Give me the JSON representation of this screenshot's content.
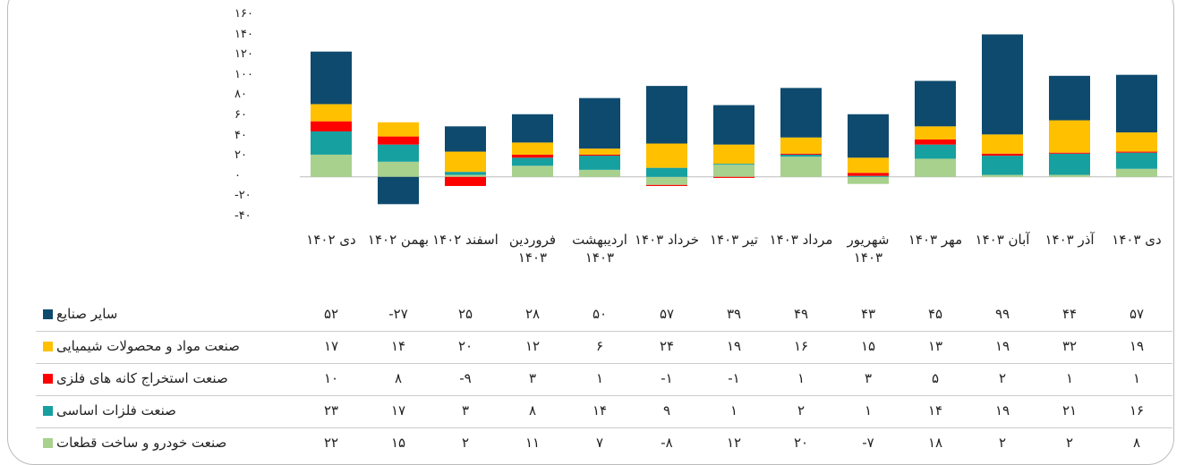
{
  "chart_data": {
    "type": "bar",
    "stacked": true,
    "categories": [
      "دی ۱۴۰۲",
      "بهمن ۱۴۰۲",
      "اسفند ۱۴۰۲",
      "فروردین ۱۴۰۳",
      "اردیبهشت ۱۴۰۳",
      "خرداد ۱۴۰۳",
      "تیر ۱۴۰۳",
      "مرداد ۱۴۰۳",
      "شهریور ۱۴۰۳",
      "مهر ۱۴۰۳",
      "آبان ۱۴۰۳",
      "آذر ۱۴۰۳",
      "دی ۱۴۰۳"
    ],
    "series": [
      {
        "name": "سایر صنایع",
        "color": "#0e4a6e",
        "values": [
          52,
          -27,
          25,
          28,
          50,
          57,
          39,
          49,
          43,
          45,
          99,
          44,
          57
        ],
        "value_labels": [
          "۵۲",
          "-۲۷",
          "۲۵",
          "۲۸",
          "۵۰",
          "۵۷",
          "۳۹",
          "۴۹",
          "۴۳",
          "۴۵",
          "۹۹",
          "۴۴",
          "۵۷"
        ]
      },
      {
        "name": "صنعت مواد و محصولات شیمیایی",
        "color": "#ffc000",
        "values": [
          17,
          14,
          20,
          12,
          6,
          24,
          19,
          16,
          15,
          13,
          19,
          32,
          19
        ],
        "value_labels": [
          "۱۷",
          "۱۴",
          "۲۰",
          "۱۲",
          "۶",
          "۲۴",
          "۱۹",
          "۱۶",
          "۱۵",
          "۱۳",
          "۱۹",
          "۳۲",
          "۱۹"
        ]
      },
      {
        "name": "صنعت استخراج کانه های فلزی",
        "color": "#ff0000",
        "values": [
          10,
          8,
          -9,
          3,
          1,
          -1,
          -1,
          1,
          3,
          5,
          2,
          1,
          1
        ],
        "value_labels": [
          "۱۰",
          "۸",
          "-۹",
          "۳",
          "۱",
          "-۱",
          "-۱",
          "۱",
          "۳",
          "۵",
          "۲",
          "۱",
          "۱"
        ]
      },
      {
        "name": "صنعت فلزات اساسی",
        "color": "#17a0a0",
        "values": [
          23,
          17,
          3,
          8,
          14,
          9,
          1,
          2,
          1,
          14,
          19,
          21,
          16
        ],
        "value_labels": [
          "۲۳",
          "۱۷",
          "۳",
          "۸",
          "۱۴",
          "۹",
          "۱",
          "۲",
          "۱",
          "۱۴",
          "۱۹",
          "۲۱",
          "۱۶"
        ]
      },
      {
        "name": "صنعت خودرو و ساخت قطعات",
        "color": "#a9d18e",
        "values": [
          22,
          15,
          2,
          11,
          7,
          -8,
          12,
          20,
          -7,
          18,
          2,
          2,
          8
        ],
        "value_labels": [
          "۲۲",
          "۱۵",
          "۲",
          "۱۱",
          "۷",
          "-۸",
          "۱۲",
          "۲۰",
          "-۷",
          "۱۸",
          "۲",
          "۲",
          "۸"
        ]
      }
    ],
    "ylim": [
      -40,
      160
    ],
    "yticks": [
      {
        "value": -40,
        "label": "-۴۰"
      },
      {
        "value": -20,
        "label": "-۲۰"
      },
      {
        "value": 0,
        "label": "۰"
      },
      {
        "value": 20,
        "label": "۲۰"
      },
      {
        "value": 40,
        "label": "۴۰"
      },
      {
        "value": 60,
        "label": "۶۰"
      },
      {
        "value": 80,
        "label": "۸۰"
      },
      {
        "value": 100,
        "label": "۱۰۰"
      },
      {
        "value": 120,
        "label": "۱۲۰"
      },
      {
        "value": 140,
        "label": "۱۴۰"
      },
      {
        "value": 160,
        "label": "۱۶۰"
      }
    ]
  }
}
